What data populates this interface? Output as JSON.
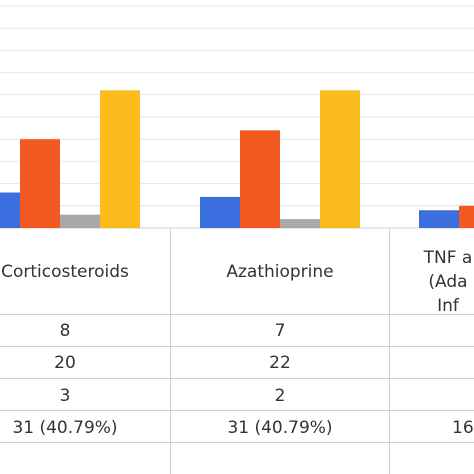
{
  "chart_data": {
    "type": "bar",
    "categories": [
      "Corticosteroids",
      "Azathioprine",
      "TNF a (Ada Inf"
    ],
    "category_header_lines": [
      [
        "Corticosteroids"
      ],
      [
        "Azathioprine"
      ],
      [
        "TNF a",
        "(Ada",
        "Inf"
      ]
    ],
    "series": [
      {
        "values": [
          8,
          7,
          4
        ],
        "color": "#3b6fe0"
      },
      {
        "values": [
          20,
          22,
          5
        ],
        "color": "#f25a22"
      },
      {
        "values": [
          3,
          2,
          null
        ],
        "color": "#a9a9a9"
      },
      {
        "values": [
          31,
          31,
          null
        ],
        "color": "#fbbd1d"
      }
    ],
    "table_rows": [
      [
        "8",
        "7",
        ""
      ],
      [
        "20",
        "22",
        ""
      ],
      [
        "3",
        "2",
        ""
      ],
      [
        "31 (40.79%)",
        "31 (40.79%)",
        "16"
      ]
    ],
    "ylim": [
      0,
      50
    ],
    "grid": true,
    "title": "",
    "xlabel": "",
    "ylabel": ""
  }
}
